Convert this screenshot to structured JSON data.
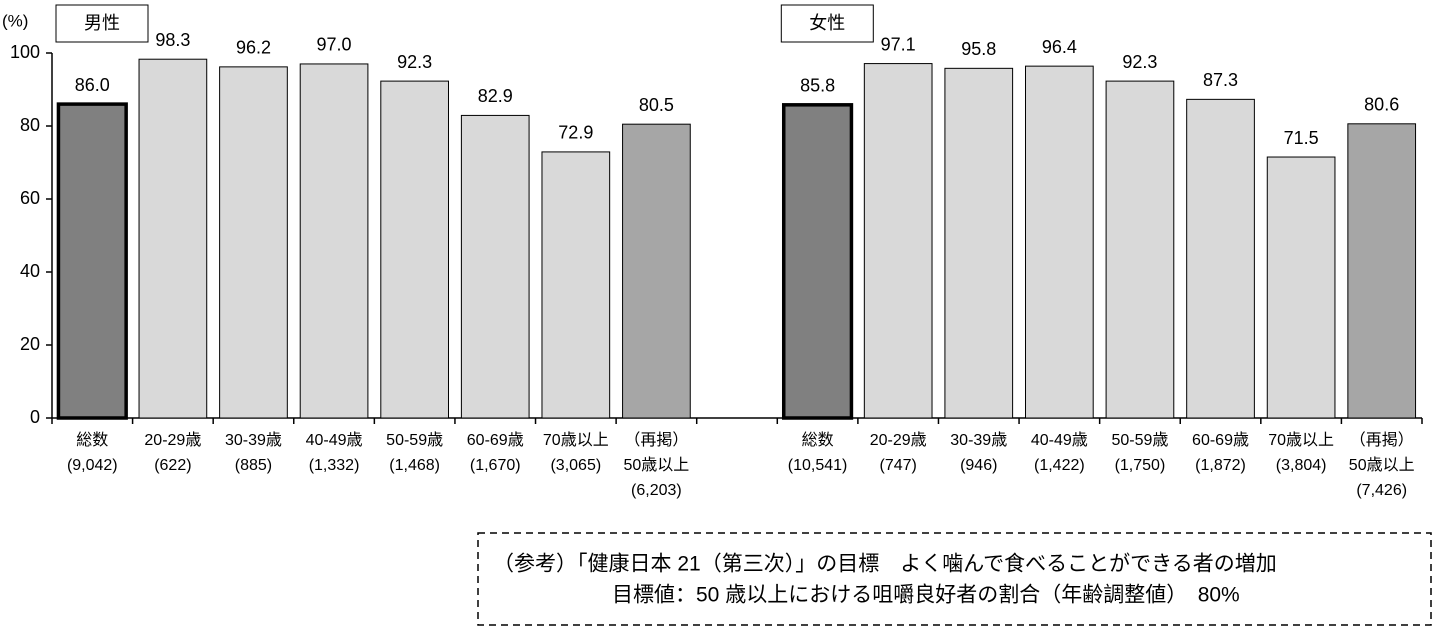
{
  "chart_data": [
    {
      "type": "bar",
      "label": "男性",
      "y_unit": "(%)",
      "categories": [
        [
          "総数",
          "(9,042)"
        ],
        [
          "20-29歳",
          "(622)"
        ],
        [
          "30-39歳",
          "(885)"
        ],
        [
          "40-49歳",
          "(1,332)"
        ],
        [
          "50-59歳",
          "(1,468)"
        ],
        [
          "60-69歳",
          "(1,670)"
        ],
        [
          "70歳以上",
          "(3,065)"
        ],
        [
          "（再掲）",
          "50歳以上",
          "(6,203)"
        ]
      ],
      "values": [
        86.0,
        98.3,
        96.2,
        97.0,
        92.3,
        82.9,
        72.9,
        80.5
      ],
      "value_labels": [
        "86.0",
        "98.3",
        "96.2",
        "97.0",
        "92.3",
        "82.9",
        "72.9",
        "80.5"
      ],
      "colors": [
        "#808080",
        "#d9d9d9",
        "#d9d9d9",
        "#d9d9d9",
        "#d9d9d9",
        "#d9d9d9",
        "#d9d9d9",
        "#a6a6a6"
      ],
      "ylim": [
        0,
        100
      ],
      "yticks": [
        0,
        20,
        40,
        60,
        80,
        100
      ]
    },
    {
      "type": "bar",
      "label": "女性",
      "categories": [
        [
          "総数",
          "(10,541)"
        ],
        [
          "20-29歳",
          "(747)"
        ],
        [
          "30-39歳",
          "(946)"
        ],
        [
          "40-49歳",
          "(1,422)"
        ],
        [
          "50-59歳",
          "(1,750)"
        ],
        [
          "60-69歳",
          "(1,872)"
        ],
        [
          "70歳以上",
          "(3,804)"
        ],
        [
          "（再掲）",
          "50歳以上",
          "(7,426)"
        ]
      ],
      "values": [
        85.8,
        97.1,
        95.8,
        96.4,
        92.3,
        87.3,
        71.5,
        80.6
      ],
      "value_labels": [
        "85.8",
        "97.1",
        "95.8",
        "96.4",
        "92.3",
        "87.3",
        "71.5",
        "80.6"
      ],
      "colors": [
        "#808080",
        "#d9d9d9",
        "#d9d9d9",
        "#d9d9d9",
        "#d9d9d9",
        "#d9d9d9",
        "#d9d9d9",
        "#a6a6a6"
      ],
      "ylim": [
        0,
        100
      ]
    }
  ],
  "note": {
    "lines": [
      "（参考）「健康日本 21（第三次）」の目標　よく噛んで食べることができる者の増加",
      "目標値：50 歳以上における咀嚼良好者の割合（年齢調整値）　80%"
    ]
  }
}
